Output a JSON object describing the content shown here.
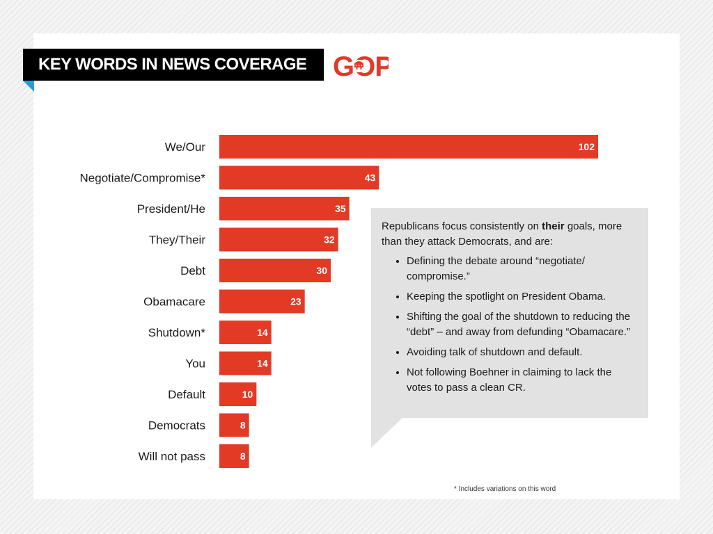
{
  "title": "KEY WORDS IN NEWS COVERAGE",
  "logo": {
    "text": "GOP",
    "icon": "elephant-icon",
    "color": "#e03a2b"
  },
  "colors": {
    "bar": "#e33a26",
    "title_bg": "#000000",
    "callout_bg": "#e2e2e2",
    "accent": "#2a9fd0"
  },
  "chart_data": {
    "type": "bar",
    "orientation": "horizontal",
    "title": "KEY WORDS IN NEWS COVERAGE",
    "categories": [
      "We/Our",
      "Negotiate/Compromise*",
      "President/He",
      "They/Their",
      "Debt",
      "Obamacare",
      "Shutdown*",
      "You",
      "Default",
      "Democrats",
      "Will not pass"
    ],
    "values": [
      102,
      43,
      35,
      32,
      30,
      23,
      14,
      14,
      10,
      8,
      8
    ],
    "xlim": [
      0,
      102
    ],
    "grid": false,
    "data_labels": true
  },
  "callout": {
    "intro_before": "Republicans focus consistently on ",
    "intro_bold": "their",
    "intro_after": " goals, more than they attack Democrats, and are:",
    "bullets": [
      "Defining the debate around “negotiate/ compromise.”",
      "Keeping the spotlight on President Obama.",
      "Shifting the goal of the shutdown to reducing the “debt” – and away from defunding “Obamacare.”",
      "Avoiding talk of shutdown and default.",
      "Not following Boehner in claiming to lack the votes to pass a clean CR."
    ]
  },
  "footnote": "* Includes variations on this word"
}
